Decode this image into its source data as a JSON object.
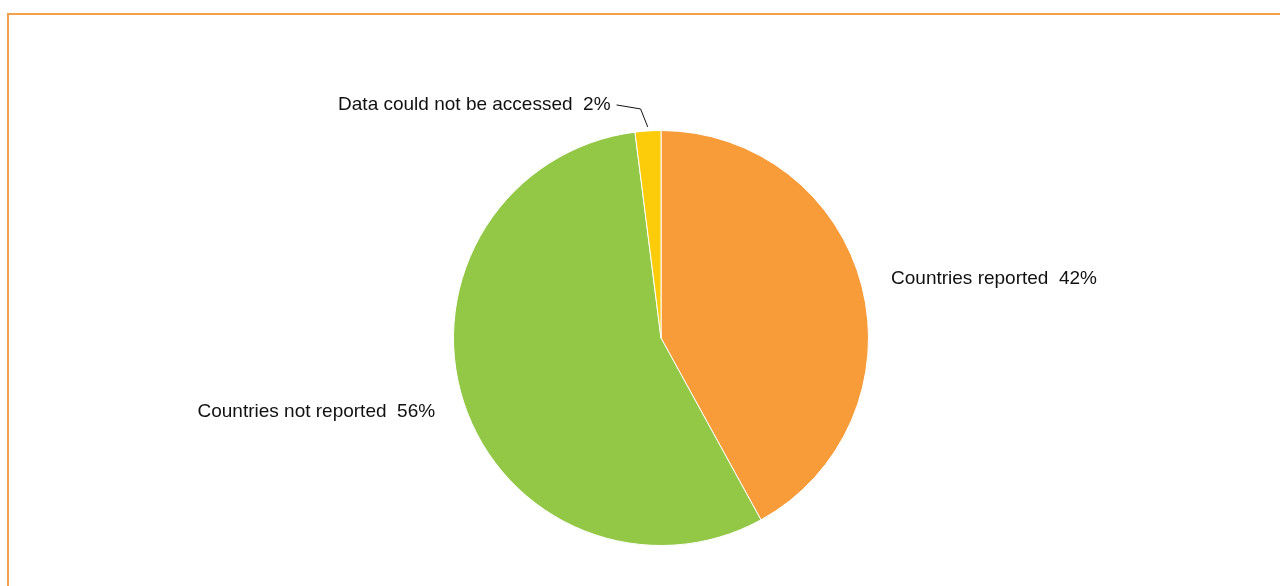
{
  "chart_data": {
    "type": "pie",
    "categories": [
      "Countries reported",
      "Countries not reported",
      "Data could not be accessed"
    ],
    "values": [
      42,
      56,
      2
    ],
    "value_labels": [
      "42%",
      "56%",
      "2%"
    ],
    "colors": [
      "#f89c3a",
      "#92c846",
      "#fccc0a"
    ],
    "legend": false
  }
}
